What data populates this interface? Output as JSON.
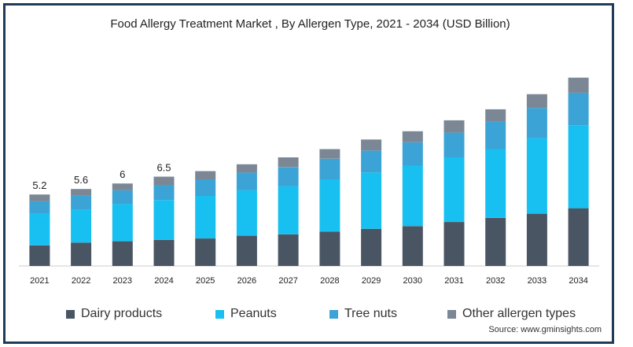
{
  "chart_data": {
    "type": "bar",
    "stacked": true,
    "title": "Food Allergy Treatment Market , By Allergen Type, 2021 - 2034 (USD Billion)",
    "xlabel": "",
    "ylabel": "",
    "categories": [
      "2021",
      "2022",
      "2023",
      "2024",
      "2025",
      "2026",
      "2027",
      "2028",
      "2029",
      "2030",
      "2031",
      "2032",
      "2033",
      "2034"
    ],
    "totals_labels": {
      "2021": "5.2",
      "2022": "5.6",
      "2023": "6",
      "2024": "6.5"
    },
    "series": [
      {
        "name": "Dairy products",
        "color": "#4a5563",
        "values": [
          1.5,
          1.7,
          1.8,
          1.9,
          2.0,
          2.2,
          2.3,
          2.5,
          2.7,
          2.9,
          3.2,
          3.5,
          3.8,
          4.2
        ]
      },
      {
        "name": "Peanuts",
        "color": "#17c0f0",
        "values": [
          2.3,
          2.4,
          2.7,
          2.9,
          3.1,
          3.3,
          3.5,
          3.8,
          4.1,
          4.4,
          4.7,
          5.0,
          5.5,
          6.0
        ]
      },
      {
        "name": "Tree nuts",
        "color": "#3ca3d6",
        "values": [
          0.9,
          1.0,
          1.0,
          1.1,
          1.2,
          1.3,
          1.4,
          1.5,
          1.6,
          1.7,
          1.8,
          2.0,
          2.2,
          2.4
        ]
      },
      {
        "name": "Other allergen types",
        "color": "#7b8794",
        "values": [
          0.5,
          0.5,
          0.5,
          0.6,
          0.6,
          0.6,
          0.7,
          0.7,
          0.8,
          0.8,
          0.9,
          0.9,
          1.0,
          1.1
        ]
      }
    ],
    "ylim": [
      0,
      14.2
    ],
    "grid": false,
    "legend_position": "bottom"
  },
  "source": "Source: www.gminsights.com"
}
